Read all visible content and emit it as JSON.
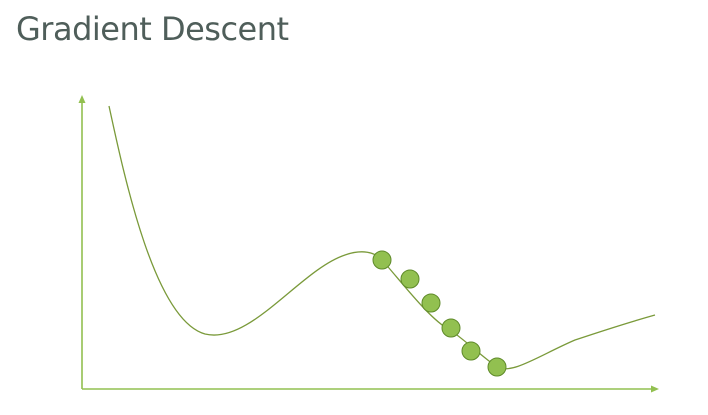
{
  "slide": {
    "title": "Gradient Descent"
  },
  "colors": {
    "title_text": "#4f5e5a",
    "axis": "#92c050",
    "curve": "#7a9a3a",
    "ball_fill": "#92c050",
    "ball_stroke": "#5f8a2a",
    "background": "#ffffff"
  },
  "diagram": {
    "description_elements": [
      "y-axis",
      "x-axis",
      "loss-curve",
      "descent-steps"
    ],
    "descent_step_count": 6
  }
}
